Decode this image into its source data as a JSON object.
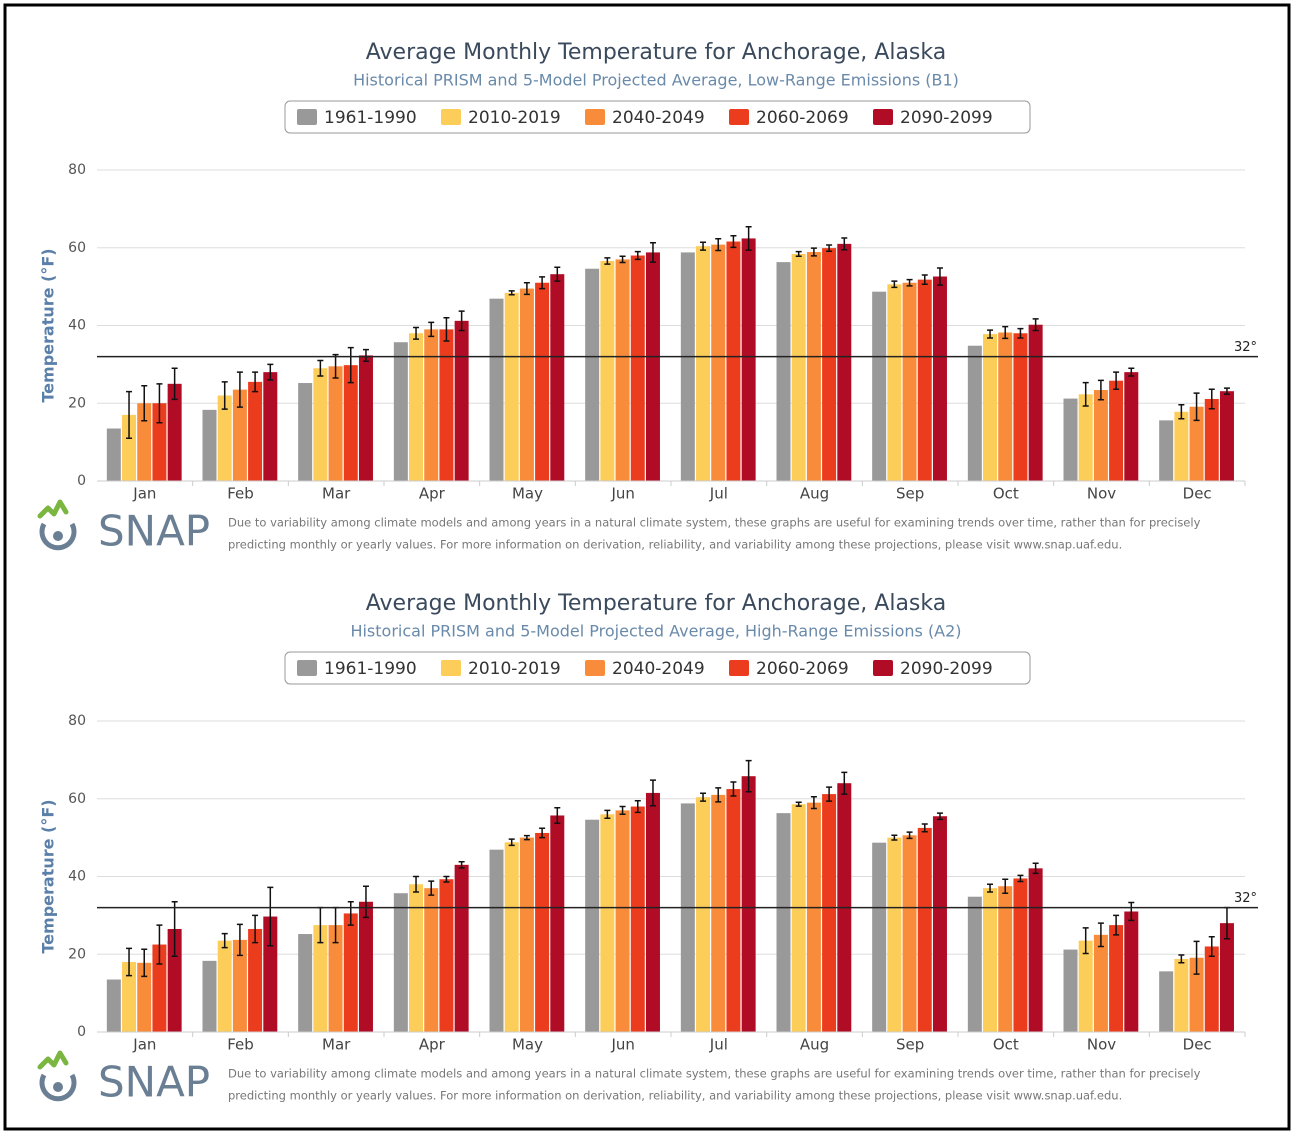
{
  "chart_data": [
    {
      "type": "bar",
      "title": "Average Monthly Temperature for Anchorage, Alaska",
      "subtitle": "Historical PRISM and 5-Model Projected Average, Low-Range Emissions (B1)",
      "y_label": "Temperature (°F)",
      "categories": [
        "Jan",
        "Feb",
        "Mar",
        "Apr",
        "May",
        "Jun",
        "Jul",
        "Aug",
        "Sep",
        "Oct",
        "Nov",
        "Dec"
      ],
      "series": [
        {
          "name": "1961-1990",
          "color": "#999999",
          "values": [
            13.5,
            18.3,
            25.2,
            35.7,
            46.9,
            54.6,
            58.8,
            56.3,
            48.7,
            34.8,
            21.2,
            15.6
          ]
        },
        {
          "name": "2010-2019",
          "color": "#fdcd5a",
          "values": [
            17,
            22,
            29,
            38,
            48.4,
            56.6,
            60.4,
            58.4,
            50.6,
            37.8,
            22.3,
            17.8
          ],
          "errors": [
            6,
            3.5,
            2,
            1.5,
            0.5,
            0.8,
            1,
            0.6,
            0.8,
            1,
            3,
            1.8
          ]
        },
        {
          "name": "2040-2049",
          "color": "#f98c3a",
          "values": [
            20,
            23.5,
            29.5,
            39,
            49.5,
            57,
            60.8,
            58.9,
            51,
            38.2,
            23.4,
            19.1
          ],
          "errors": [
            4.5,
            4.5,
            3,
            1.8,
            1.5,
            0.8,
            1.5,
            1,
            0.8,
            1.5,
            2.5,
            3.5
          ]
        },
        {
          "name": "2060-2069",
          "color": "#ec3c1e",
          "values": [
            20,
            25.5,
            29.8,
            39,
            51,
            58,
            61.6,
            59.9,
            51.8,
            38,
            25.8,
            21.1
          ],
          "errors": [
            5,
            2.5,
            4.5,
            3,
            1.5,
            1,
            1.5,
            0.8,
            1.2,
            1.2,
            2.2,
            2.5
          ]
        },
        {
          "name": "2090-2099",
          "color": "#b10c26",
          "values": [
            25,
            28,
            32.3,
            41.2,
            53.2,
            58.8,
            62.4,
            61,
            52.6,
            40.2,
            28,
            23.1
          ],
          "errors": [
            4,
            2,
            1.5,
            2.5,
            1.8,
            2.5,
            3,
            1.5,
            2.2,
            1.5,
            1,
            0.8
          ]
        }
      ],
      "reference_line": {
        "value": 32,
        "label": "32°"
      },
      "ylim": [
        0,
        80
      ],
      "yticks": [
        0,
        20,
        40,
        60,
        80
      ],
      "grid": true,
      "logo": "SNAP",
      "note": [
        "Due to variability among climate models and among years in a natural climate system, these graphs are useful for examining trends over time, rather than for precisely",
        "predicting monthly or yearly values. For more information on derivation, reliability, and variability among these projections, please visit www.snap.uaf.edu."
      ]
    },
    {
      "type": "bar",
      "title": "Average Monthly Temperature for Anchorage, Alaska",
      "subtitle": "Historical PRISM and 5-Model Projected Average, High-Range Emissions (A2)",
      "y_label": "Temperature (°F)",
      "categories": [
        "Jan",
        "Feb",
        "Mar",
        "Apr",
        "May",
        "Jun",
        "Jul",
        "Aug",
        "Sep",
        "Oct",
        "Nov",
        "Dec"
      ],
      "series": [
        {
          "name": "1961-1990",
          "color": "#999999",
          "values": [
            13.5,
            18.3,
            25.2,
            35.7,
            46.9,
            54.6,
            58.8,
            56.3,
            48.7,
            34.8,
            21.2,
            15.6
          ]
        },
        {
          "name": "2010-2019",
          "color": "#fdcd5a",
          "values": [
            18,
            23.5,
            27.5,
            38,
            48.8,
            56,
            60.4,
            58.6,
            50,
            37,
            23.5,
            18.8
          ],
          "errors": [
            3.5,
            1.8,
            4.5,
            2,
            0.8,
            1,
            1,
            0.5,
            0.6,
            1,
            3.3,
            1
          ]
        },
        {
          "name": "2040-2049",
          "color": "#f98c3a",
          "values": [
            17.8,
            23.7,
            27.5,
            37,
            50,
            57,
            61,
            59,
            50.6,
            37.5,
            25,
            19.1
          ],
          "errors": [
            3.5,
            4,
            4.5,
            1.8,
            0.5,
            1,
            1.8,
            1.5,
            0.8,
            1.8,
            3,
            4.2
          ]
        },
        {
          "name": "2060-2069",
          "color": "#ec3c1e",
          "values": [
            22.5,
            26.5,
            30.5,
            39.3,
            51.2,
            58,
            62.5,
            61.2,
            52.5,
            39.5,
            27.5,
            22
          ],
          "errors": [
            5,
            3.5,
            3,
            0.7,
            1.2,
            1.5,
            1.8,
            1.8,
            1,
            0.8,
            2.5,
            2.5
          ]
        },
        {
          "name": "2090-2099",
          "color": "#b10c26",
          "values": [
            26.5,
            29.7,
            33.5,
            43,
            55.7,
            61.5,
            65.8,
            64,
            55.5,
            42.1,
            31,
            28
          ],
          "errors": [
            7,
            7.5,
            4,
            0.8,
            2,
            3.3,
            4,
            2.8,
            0.8,
            1.3,
            2.3,
            4
          ]
        }
      ],
      "reference_line": {
        "value": 32,
        "label": "32°"
      },
      "ylim": [
        0,
        80
      ],
      "yticks": [
        0,
        20,
        40,
        60,
        80
      ],
      "grid": true,
      "logo": "SNAP",
      "note": [
        "Due to variability among climate models and among years in a natural climate system, these graphs are useful for examining trends over time, rather than for precisely",
        "predicting monthly or yearly values. For more information on derivation, reliability, and variability among these projections, please visit www.snap.uaf.edu."
      ]
    }
  ]
}
